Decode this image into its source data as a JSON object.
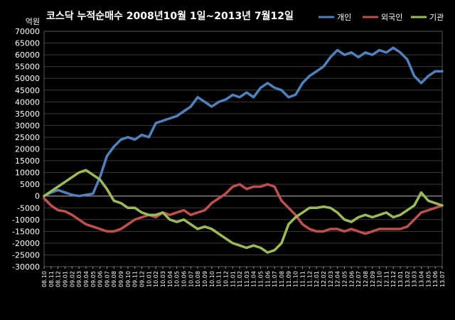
{
  "chart_data": {
    "type": "line",
    "title": "코스닥  누적순매수 2008년10월 1일~2013년 7월12일",
    "unit_label": "억원",
    "ylim": [
      -30000,
      70000
    ],
    "ytick_step": 5000,
    "x_ticks": [
      "08.10",
      "08.11",
      "08.12",
      "09.01",
      "09.02",
      "09.03",
      "09.04",
      "09.05",
      "09.06",
      "09.07",
      "09.08",
      "09.09",
      "09.10",
      "09.11",
      "09.12",
      "10.01",
      "10.02",
      "10.03",
      "10.04",
      "10.05",
      "10.06",
      "10.07",
      "10.08",
      "10.09",
      "10.10",
      "10.11",
      "10.12",
      "11.01",
      "11.02",
      "11.03",
      "11.04",
      "11.05",
      "11.06",
      "11.07",
      "11.08",
      "11.09",
      "11.10",
      "11.11",
      "11.12",
      "12.01",
      "12.02",
      "12.03",
      "12.04",
      "12.05",
      "12.06",
      "12.07",
      "12.08",
      "12.09",
      "12.10",
      "12.11",
      "12.12",
      "13.01",
      "13.02",
      "13.03",
      "13.04",
      "13.05",
      "13.06",
      "13.07"
    ],
    "series": [
      {
        "name": "개인",
        "color": "#4F81BD",
        "values": [
          0,
          1500,
          2500,
          1500,
          500,
          0,
          500,
          1000,
          8000,
          17000,
          21000,
          24000,
          25000,
          24000,
          26000,
          25000,
          31000,
          32000,
          33000,
          34000,
          36000,
          38000,
          42000,
          40000,
          38000,
          40000,
          41000,
          43000,
          42000,
          44000,
          42000,
          46000,
          48000,
          46000,
          45000,
          42000,
          43000,
          48000,
          51000,
          53000,
          55000,
          59000,
          62000,
          60000,
          61000,
          59000,
          61000,
          60000,
          62000,
          61000,
          63000,
          61000,
          58000,
          51000,
          48000,
          51000,
          53000,
          53000
        ]
      },
      {
        "name": "외국인",
        "color": "#C0504D",
        "values": [
          -1000,
          -4000,
          -6000,
          -6500,
          -8000,
          -10000,
          -12000,
          -13000,
          -14000,
          -15000,
          -15000,
          -14000,
          -12000,
          -10000,
          -9000,
          -8000,
          -9000,
          -7000,
          -8000,
          -7000,
          -6000,
          -8000,
          -7000,
          -6000,
          -3000,
          -1000,
          1000,
          4000,
          5000,
          3000,
          4000,
          4000,
          5000,
          4000,
          -2000,
          -5000,
          -8000,
          -12000,
          -14000,
          -15000,
          -15000,
          -14000,
          -14000,
          -15000,
          -14000,
          -15000,
          -16000,
          -15000,
          -14000,
          -14000,
          -14000,
          -14000,
          -13000,
          -10000,
          -7000,
          -6000,
          -5000,
          -4000
        ]
      },
      {
        "name": "기관",
        "color": "#9BBB59",
        "values": [
          0,
          2000,
          4000,
          6000,
          8000,
          10000,
          11000,
          9000,
          7000,
          3000,
          -2000,
          -3000,
          -5000,
          -5000,
          -7000,
          -8000,
          -8000,
          -7000,
          -10000,
          -11000,
          -10000,
          -12000,
          -14000,
          -13000,
          -14000,
          -16000,
          -18000,
          -20000,
          -21000,
          -22000,
          -21000,
          -22000,
          -24000,
          -23000,
          -20000,
          -12000,
          -9000,
          -7000,
          -5000,
          -5000,
          -4500,
          -5000,
          -7000,
          -10000,
          -11000,
          -9000,
          -8000,
          -9000,
          -8000,
          -7000,
          -9000,
          -8000,
          -6000,
          -4000,
          1500,
          -2000,
          -3000,
          -4000
        ]
      }
    ],
    "legend_position": "top-right",
    "grid": true
  }
}
